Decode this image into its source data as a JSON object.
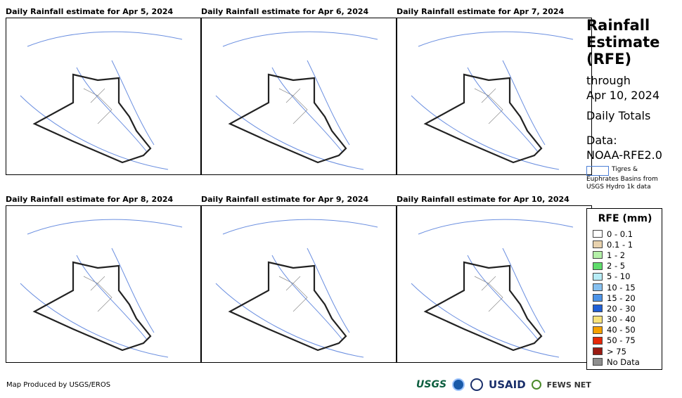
{
  "panels": [
    {
      "title": "Daily Rainfall estimate for Apr 5, 2024"
    },
    {
      "title": "Daily Rainfall estimate for Apr 6, 2024"
    },
    {
      "title": "Daily Rainfall estimate for Apr 7, 2024"
    },
    {
      "title": "Daily Rainfall estimate for Apr 8, 2024"
    },
    {
      "title": "Daily Rainfall estimate for Apr 9, 2024"
    },
    {
      "title": "Daily Rainfall estimate for Apr 10, 2024"
    }
  ],
  "side": {
    "title_line1": "Rainfall",
    "title_line2": "Estimate",
    "title_line3": "(RFE)",
    "through": "through",
    "through_date": "Apr 10, 2024",
    "totals": "Daily Totals",
    "data_label": "Data:",
    "data_source": "NOAA-RFE2.0",
    "basin_key_line1": "Tigres &",
    "basin_key_line2": "Euphrates Basins from",
    "basin_key_line3": "USGS Hydro 1k data"
  },
  "legend": {
    "title": "RFE (mm)",
    "items": [
      {
        "label": "0 - 0.1",
        "color": "#ffffff"
      },
      {
        "label": "0.1 - 1",
        "color": "#e8d2ae"
      },
      {
        "label": "1 - 2",
        "color": "#b4f0a8"
      },
      {
        "label": "2 - 5",
        "color": "#5fdc6b"
      },
      {
        "label": "5 - 10",
        "color": "#b7ecf6"
      },
      {
        "label": "10 - 15",
        "color": "#86c0f0"
      },
      {
        "label": "15 - 20",
        "color": "#4d94e8"
      },
      {
        "label": "20 - 30",
        "color": "#1f5fd6"
      },
      {
        "label": "30 - 40",
        "color": "#f8e27a"
      },
      {
        "label": "40 - 50",
        "color": "#f5a100"
      },
      {
        "label": "50 - 75",
        "color": "#e62808"
      },
      {
        "label": "> 75",
        "color": "#9b1b12"
      },
      {
        "label": "No Data",
        "color": "#8e8e8e"
      }
    ]
  },
  "footer": {
    "credit": "Map Produced by USGS/EROS",
    "logo_usgs": "USGS",
    "logo_usaid": "USAID",
    "logo_fews": "FEWS NET"
  }
}
